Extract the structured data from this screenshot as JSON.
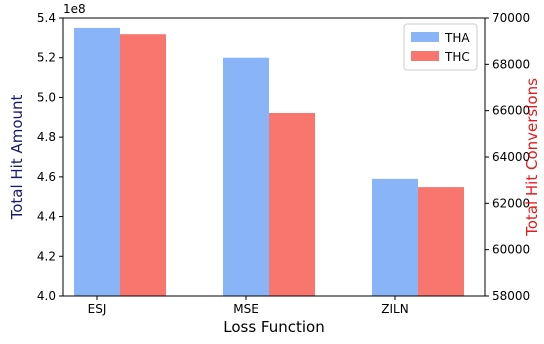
{
  "chart_data": {
    "type": "bar",
    "xlabel": "Loss Function",
    "categories": [
      "ESJ",
      "MSE",
      "ZILN"
    ],
    "left_axis": {
      "label": "Total Hit Amount",
      "label_color": "#1a1a6e",
      "multiplier_text": "1e8",
      "ylim": [
        4.0,
        5.4
      ],
      "ticks": [
        "4.0",
        "4.2",
        "4.4",
        "4.6",
        "4.8",
        "5.0",
        "5.2",
        "5.4"
      ]
    },
    "right_axis": {
      "label": "Total Hit Conversions",
      "label_color": "#e41a1c",
      "ylim": [
        58000,
        70000
      ],
      "ticks": [
        "58000",
        "60000",
        "62000",
        "64000",
        "66000",
        "68000",
        "70000"
      ]
    },
    "series": [
      {
        "name": "THA",
        "axis": "left",
        "color": "#89b4f8",
        "values": [
          5.35,
          5.2,
          4.59
        ]
      },
      {
        "name": "THC",
        "axis": "right",
        "color": "#f8766d",
        "values": [
          69300,
          65900,
          62700
        ]
      }
    ],
    "legend_position": "top-right",
    "grid": false
  }
}
